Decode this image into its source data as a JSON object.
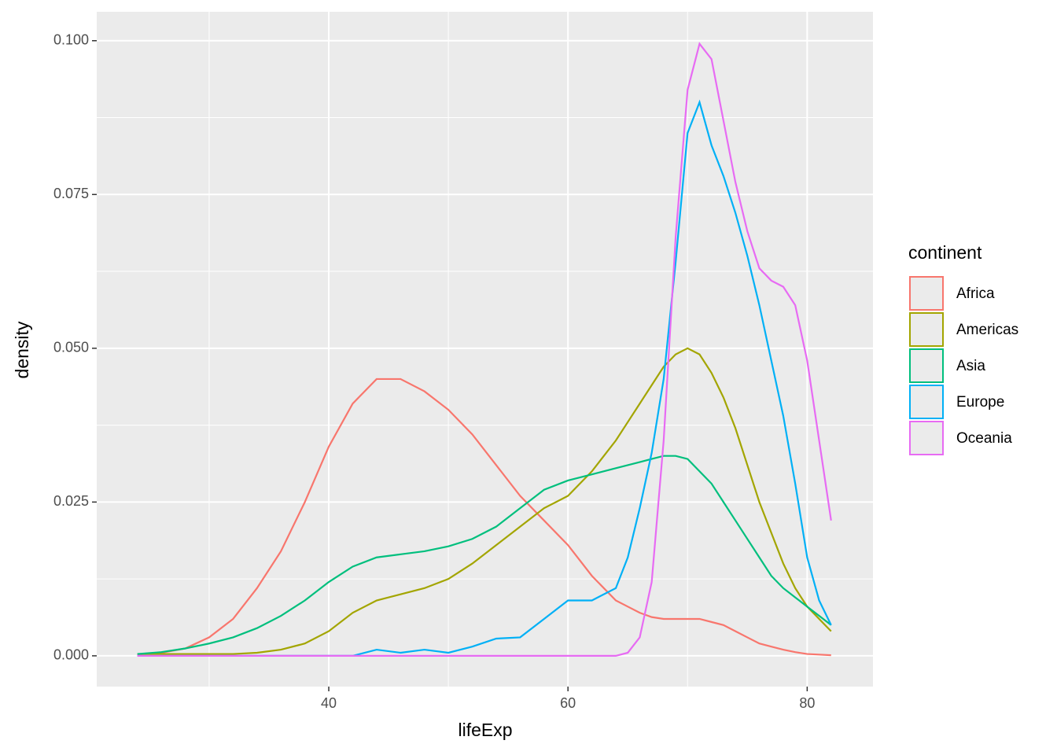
{
  "chart_data": {
    "type": "line",
    "xlabel": "lifeExp",
    "ylabel": "density",
    "legend_title": "continent",
    "x": [
      24,
      26,
      28,
      30,
      32,
      34,
      36,
      38,
      40,
      42,
      44,
      46,
      48,
      50,
      52,
      54,
      56,
      58,
      60,
      62,
      64,
      65,
      66,
      67,
      68,
      69,
      70,
      71,
      72,
      73,
      74,
      75,
      76,
      77,
      78,
      79,
      80,
      81,
      82
    ],
    "series": [
      {
        "name": "Africa",
        "color": "#F8766D",
        "values": [
          0.0002,
          0.0005,
          0.0012,
          0.003,
          0.006,
          0.011,
          0.017,
          0.025,
          0.034,
          0.041,
          0.045,
          0.045,
          0.043,
          0.04,
          0.036,
          0.031,
          0.026,
          0.022,
          0.018,
          0.013,
          0.009,
          0.008,
          0.007,
          0.0063,
          0.006,
          0.006,
          0.006,
          0.006,
          0.0055,
          0.005,
          0.004,
          0.003,
          0.002,
          0.0015,
          0.001,
          0.0006,
          0.0003,
          0.0002,
          0.0001
        ]
      },
      {
        "name": "Americas",
        "color": "#A3A500",
        "values": [
          0.0003,
          0.0003,
          0.0003,
          0.0003,
          0.0003,
          0.0005,
          0.001,
          0.002,
          0.004,
          0.007,
          0.009,
          0.01,
          0.011,
          0.0125,
          0.015,
          0.018,
          0.021,
          0.024,
          0.026,
          0.03,
          0.035,
          0.038,
          0.041,
          0.044,
          0.047,
          0.049,
          0.05,
          0.049,
          0.046,
          0.042,
          0.037,
          0.031,
          0.025,
          0.02,
          0.015,
          0.011,
          0.008,
          0.006,
          0.004
        ]
      },
      {
        "name": "Asia",
        "color": "#00BF7D",
        "values": [
          0.0003,
          0.0006,
          0.0012,
          0.002,
          0.003,
          0.0045,
          0.0065,
          0.009,
          0.012,
          0.0145,
          0.016,
          0.0165,
          0.017,
          0.0178,
          0.019,
          0.021,
          0.024,
          0.027,
          0.0285,
          0.0295,
          0.0305,
          0.031,
          0.0315,
          0.032,
          0.0325,
          0.0325,
          0.032,
          0.03,
          0.028,
          0.025,
          0.022,
          0.019,
          0.016,
          0.013,
          0.011,
          0.0095,
          0.008,
          0.0065,
          0.005
        ]
      },
      {
        "name": "Europe",
        "color": "#00B0F6",
        "values": [
          0,
          0,
          0,
          0,
          0,
          0,
          0,
          0,
          0,
          0,
          0.001,
          0.0005,
          0.001,
          0.0005,
          0.0015,
          0.0028,
          0.003,
          0.006,
          0.009,
          0.009,
          0.011,
          0.016,
          0.024,
          0.033,
          0.045,
          0.064,
          0.085,
          0.09,
          0.083,
          0.078,
          0.072,
          0.065,
          0.057,
          0.048,
          0.039,
          0.028,
          0.016,
          0.009,
          0.005
        ]
      },
      {
        "name": "Oceania",
        "color": "#E76BF3",
        "values": [
          0,
          0,
          0,
          0,
          0,
          0,
          0,
          0,
          0,
          0,
          0,
          0,
          0,
          0,
          0,
          0,
          0,
          0,
          0,
          0,
          0,
          0.0005,
          0.003,
          0.012,
          0.035,
          0.068,
          0.092,
          0.0995,
          0.097,
          0.087,
          0.077,
          0.069,
          0.063,
          0.061,
          0.06,
          0.057,
          0.048,
          0.035,
          0.022
        ]
      }
    ],
    "xlim": [
      20.6,
      85.5
    ],
    "xticks": [
      40,
      60,
      80
    ],
    "ylim": [
      -0.005,
      0.1047
    ],
    "yticks": [
      {
        "value": 0,
        "label": "0.000"
      },
      {
        "value": 0.025,
        "label": "0.025"
      },
      {
        "value": 0.05,
        "label": "0.050"
      },
      {
        "value": 0.075,
        "label": "0.075"
      },
      {
        "value": 0.1,
        "label": "0.100"
      }
    ],
    "grid": true,
    "legend": "right"
  }
}
